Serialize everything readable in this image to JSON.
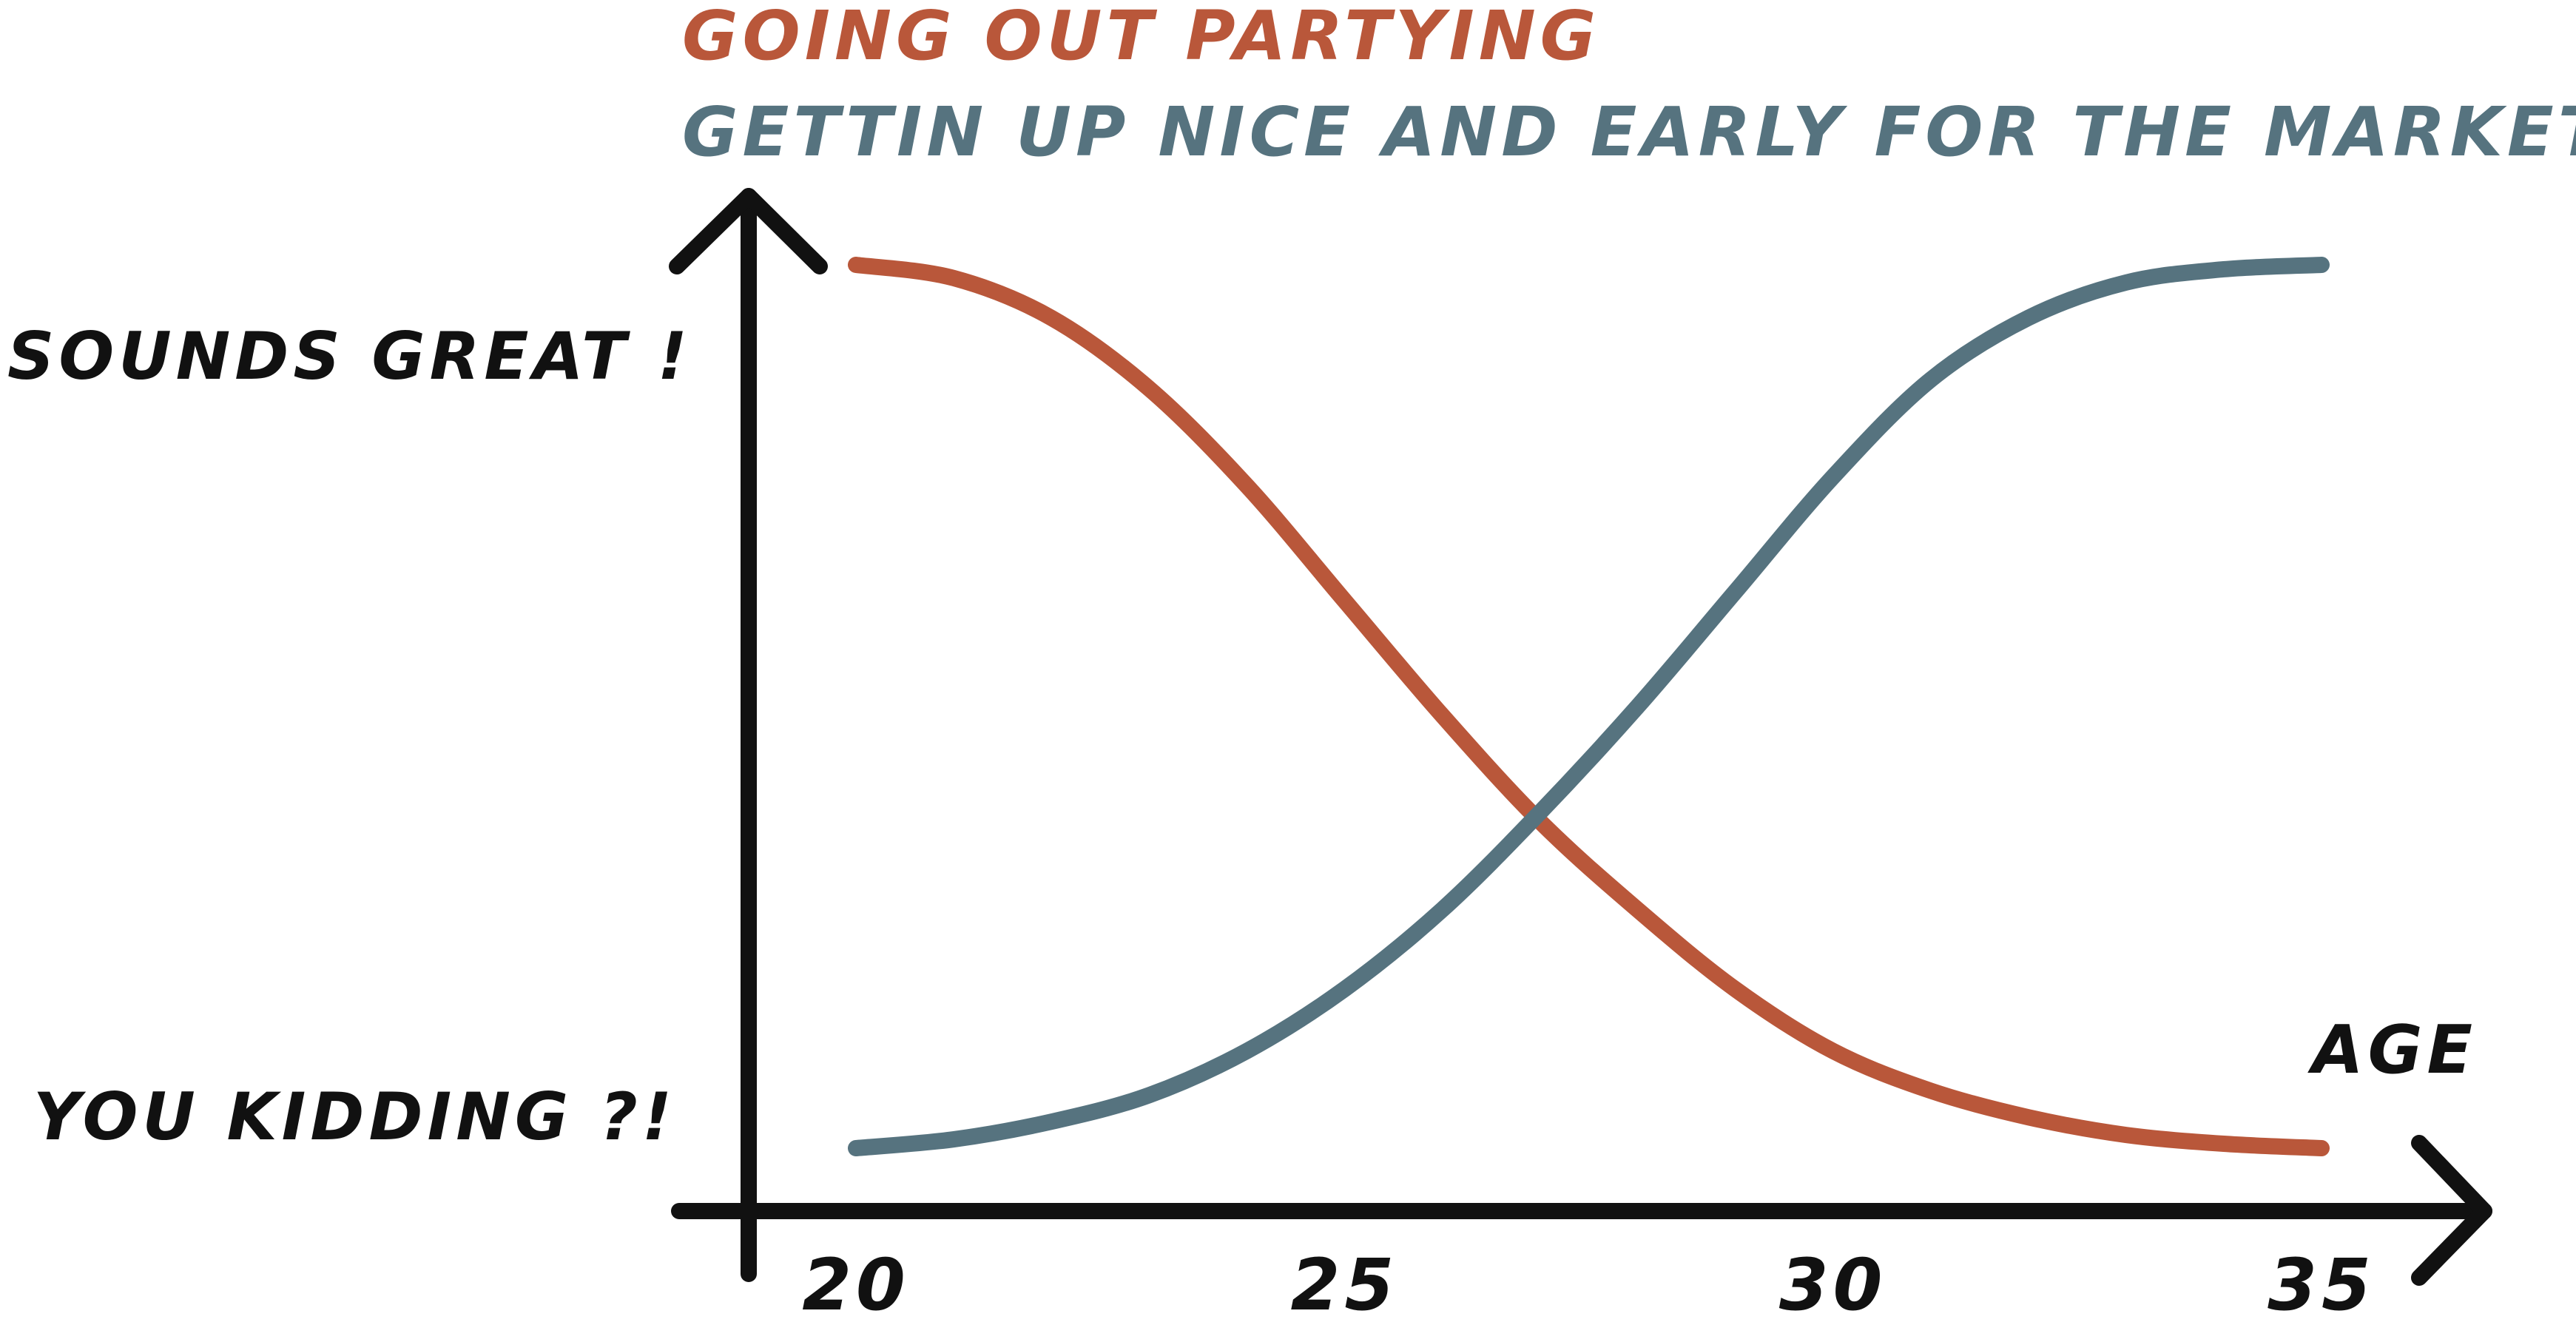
{
  "chart_data": {
    "type": "line",
    "title": "",
    "xlabel": "AGE",
    "ylabel": "",
    "x_ticks": [
      20,
      25,
      30,
      35
    ],
    "xlim": [
      20,
      35
    ],
    "y_ticks": [
      {
        "label": "SOUNDS GREAT !",
        "value": 1
      },
      {
        "label": "YOU KIDDING ?!",
        "value": 0
      }
    ],
    "ylim": [
      0,
      1
    ],
    "grid": false,
    "legend": "top-left",
    "series": [
      {
        "name": "GOING OUT PARTYING",
        "color": "#b9573a",
        "x": [
          20,
          21,
          22,
          23,
          24,
          25,
          26,
          27,
          28,
          29,
          30,
          31,
          32,
          33,
          34,
          35
        ],
        "values": [
          1.0,
          0.985,
          0.94,
          0.86,
          0.75,
          0.62,
          0.49,
          0.37,
          0.27,
          0.18,
          0.11,
          0.065,
          0.035,
          0.015,
          0.005,
          0.0
        ]
      },
      {
        "name": "GETTIN UP NICE AND EARLY FOR THE MARKET",
        "color": "#56737f",
        "x": [
          20,
          21,
          22,
          23,
          24,
          25,
          26,
          27,
          28,
          29,
          30,
          31,
          32,
          33,
          34,
          35
        ],
        "values": [
          0.0,
          0.01,
          0.03,
          0.06,
          0.11,
          0.18,
          0.27,
          0.38,
          0.5,
          0.63,
          0.76,
          0.87,
          0.94,
          0.98,
          0.995,
          1.0
        ]
      }
    ]
  }
}
